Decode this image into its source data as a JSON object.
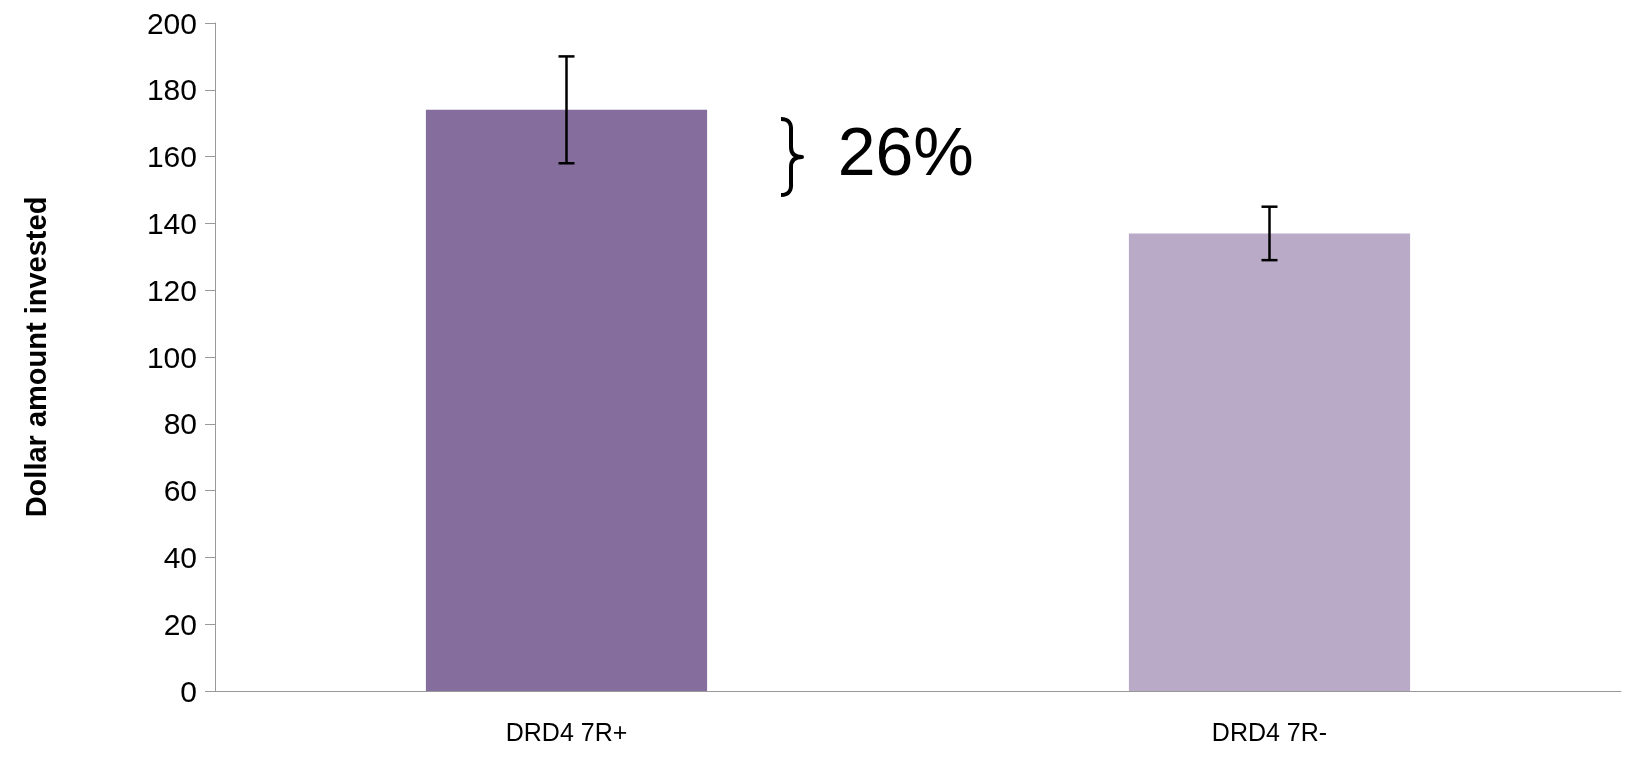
{
  "chart_data": {
    "type": "bar",
    "ylabel": "Dollar amount invested",
    "categories": [
      "DRD4 7R+",
      "DRD4 7R-"
    ],
    "values": [
      174,
      137
    ],
    "colors": [
      "#856e9d",
      "#b9aac8"
    ],
    "errors": [
      [
        158,
        190
      ],
      [
        129,
        145
      ]
    ],
    "ylim": [
      0,
      200
    ],
    "yticks": [
      0,
      20,
      40,
      60,
      80,
      100,
      120,
      140,
      160,
      180,
      200
    ],
    "grid": false,
    "annotations": [
      "26%"
    ]
  }
}
